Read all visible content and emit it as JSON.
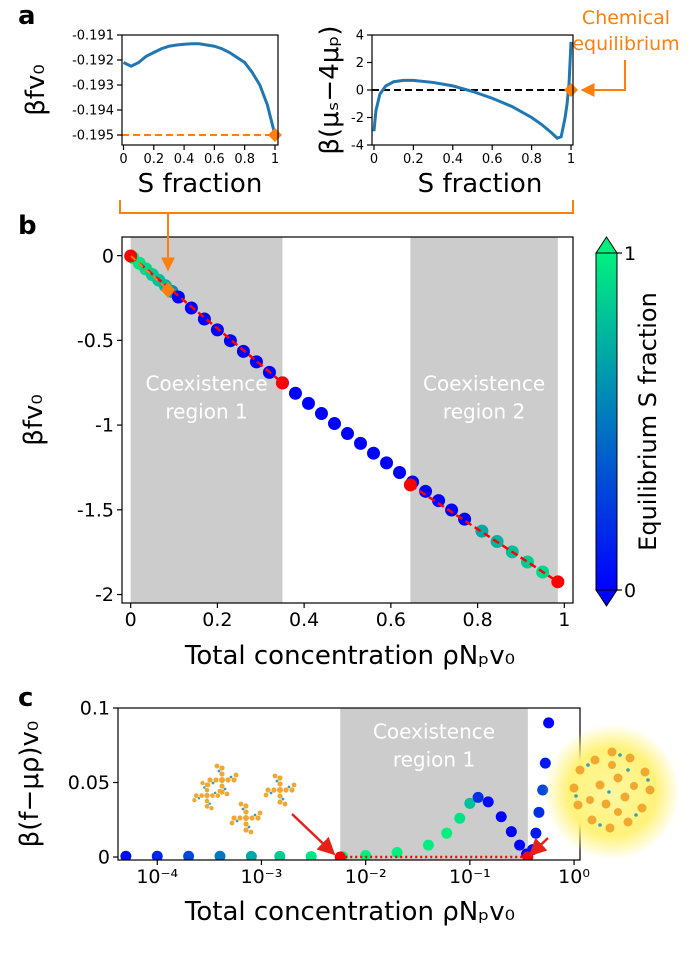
{
  "panel_labels": [
    "a",
    "b",
    "c"
  ],
  "chart_data": [
    {
      "type": "line",
      "xlabel": "S fraction",
      "ylabel": "βfv₀",
      "xlim": [
        -0.01,
        1.02
      ],
      "ylim": [
        -0.1954,
        -0.191
      ],
      "xticks": [
        0,
        0.2,
        0.4,
        0.6,
        0.8,
        1
      ],
      "yticks": [
        -0.191,
        -0.192,
        -0.193,
        -0.194,
        -0.195
      ],
      "hlines": [
        {
          "y": -0.195,
          "color": "#ff7f0e",
          "style": "dashed"
        }
      ],
      "series": [
        {
          "kind": "line",
          "color": "#1f77b4",
          "x": [
            0,
            0.05,
            0.1,
            0.15,
            0.2,
            0.25,
            0.3,
            0.35,
            0.4,
            0.45,
            0.5,
            0.55,
            0.6,
            0.65,
            0.7,
            0.75,
            0.8,
            0.85,
            0.9,
            0.95,
            1
          ],
          "values": [
            -0.1921,
            -0.19225,
            -0.1921,
            -0.19185,
            -0.1917,
            -0.19155,
            -0.19145,
            -0.1914,
            -0.19137,
            -0.19135,
            -0.19135,
            -0.1914,
            -0.19145,
            -0.19155,
            -0.1917,
            -0.1919,
            -0.1921,
            -0.1925,
            -0.193,
            -0.1938,
            -0.195
          ]
        },
        {
          "kind": "scatter",
          "marker": "diamond",
          "color": "#ff7f0e",
          "x": [
            1
          ],
          "values": [
            -0.195
          ]
        }
      ]
    },
    {
      "type": "line",
      "xlabel": "S fraction",
      "ylabel": "β(μₛ−4μₚ)",
      "annotation": [
        "Chemical",
        "equilibrium"
      ],
      "annotation_color": "#ff7f0e",
      "xlim": [
        -0.01,
        1.01
      ],
      "ylim": [
        -4,
        4
      ],
      "xticks": [
        0,
        0.2,
        0.4,
        0.6,
        0.8,
        1
      ],
      "yticks": [
        4,
        2,
        0,
        -2,
        -4
      ],
      "hlines": [
        {
          "y": 0,
          "color": "#000000",
          "style": "dashed"
        }
      ],
      "series": [
        {
          "kind": "line",
          "color": "#1f77b4",
          "x": [
            0,
            0.01,
            0.03,
            0.06,
            0.1,
            0.15,
            0.2,
            0.3,
            0.4,
            0.5,
            0.6,
            0.7,
            0.8,
            0.85,
            0.9,
            0.93,
            0.95,
            0.97,
            0.98,
            0.99,
            1
          ],
          "values": [
            -3,
            -1.5,
            -0.3,
            0.3,
            0.6,
            0.7,
            0.7,
            0.55,
            0.3,
            -0.1,
            -0.6,
            -1.2,
            -2,
            -2.5,
            -3.1,
            -3.5,
            -3.4,
            -2,
            -1,
            0.5,
            3.5
          ]
        },
        {
          "kind": "scatter",
          "marker": "diamond",
          "color": "#ff7f0e",
          "x": [
            1
          ],
          "values": [
            0
          ]
        }
      ]
    },
    {
      "type": "scatter",
      "xlabel": "Total concentration ρNₚv₀",
      "ylabel": "βfv₀",
      "xlim": [
        -0.02,
        1.02
      ],
      "ylim": [
        -2.05,
        0.11
      ],
      "xticks": [
        0,
        0.2,
        0.4,
        0.6,
        0.8,
        1
      ],
      "yticks": [
        0,
        -0.5,
        -1,
        -1.5,
        -2
      ],
      "spans": [
        {
          "x": [
            0,
            0.35
          ],
          "color": "#cccccc",
          "label": [
            "Coexistence",
            "region 1"
          ]
        },
        {
          "x": [
            0.645,
            0.985
          ],
          "color": "#cccccc",
          "label": [
            "Coexistence",
            "region 2"
          ]
        }
      ],
      "cmap": [
        "#0000ff",
        "#00f080"
      ],
      "clim": [
        0,
        1
      ],
      "cticks": [
        0,
        1
      ],
      "clabel": "Equilibrium S fraction",
      "series": [
        {
          "kind": "scatter",
          "x": [
            0.005,
            0.02,
            0.035,
            0.05,
            0.065,
            0.08,
            0.095,
            0.11,
            0.14,
            0.17,
            0.2,
            0.23,
            0.26,
            0.29,
            0.32,
            0.35,
            0.38,
            0.41,
            0.44,
            0.47,
            0.5,
            0.53,
            0.56,
            0.59,
            0.62,
            0.65,
            0.68,
            0.71,
            0.74,
            0.77,
            0.81,
            0.845,
            0.88,
            0.915,
            0.95
          ],
          "values": [
            -0.011,
            -0.045,
            -0.078,
            -0.112,
            -0.145,
            -0.178,
            -0.211,
            -0.244,
            -0.309,
            -0.374,
            -0.438,
            -0.502,
            -0.565,
            -0.627,
            -0.689,
            -0.751,
            -0.812,
            -0.872,
            -0.932,
            -0.991,
            -1.05,
            -1.108,
            -1.166,
            -1.223,
            -1.28,
            -1.336,
            -1.391,
            -1.446,
            -1.501,
            -1.555,
            -1.626,
            -1.687,
            -1.748,
            -1.808,
            -1.867
          ],
          "c": [
            1,
            0.95,
            0.9,
            0.85,
            0.8,
            0.75,
            0.6,
            0,
            0,
            0,
            0,
            0,
            0,
            0,
            0,
            0,
            0,
            0,
            0,
            0,
            0,
            0,
            0,
            0,
            0,
            0,
            0,
            0,
            0,
            0,
            0.7,
            0.75,
            0.8,
            0.85,
            0.9
          ]
        },
        {
          "kind": "line",
          "color": "#ff0000",
          "style": "dashed",
          "x": [
            0,
            0.35
          ],
          "values": [
            -0.002,
            -0.751
          ]
        },
        {
          "kind": "line",
          "color": "#ff0000",
          "style": "dashed",
          "x": [
            0.645,
            0.985
          ],
          "values": [
            -1.353,
            -1.925
          ]
        },
        {
          "kind": "scatter",
          "color": "#ff0000",
          "x": [
            0,
            0.35,
            0.645,
            0.985
          ],
          "values": [
            -0.002,
            -0.751,
            -1.353,
            -1.925
          ]
        }
      ]
    },
    {
      "type": "scatter",
      "xlabel": "Total concentration ρNₚv₀",
      "ylabel": "β(f−μρ)v₀",
      "xlog": true,
      "xlim": [
        4.2e-05,
        1.14
      ],
      "ylim": [
        -0.002,
        0.1
      ],
      "xticks": [
        {
          "value": 0.0001,
          "label": "10⁻⁴"
        },
        {
          "value": 0.001,
          "label": "10⁻³"
        },
        {
          "value": 0.01,
          "label": "10⁻²"
        },
        {
          "value": 0.1,
          "label": "10⁻¹"
        },
        {
          "value": 1,
          "label": "10⁰"
        }
      ],
      "yticks": [
        0,
        0.05,
        0.1
      ],
      "spans": [
        {
          "x": [
            0.0057,
            0.36
          ],
          "color": "#cccccc",
          "label": [
            "Coexistence",
            "region 1"
          ]
        }
      ],
      "cmap": [
        "#0000ff",
        "#00f080"
      ],
      "clim": [
        0,
        1
      ],
      "series": [
        {
          "kind": "scatter",
          "x": [
            5e-05,
            0.0001,
            0.0002,
            0.0004,
            0.0008,
            0.0015,
            0.003,
            0.006,
            0.01,
            0.02,
            0.04,
            0.06,
            0.08,
            0.1,
            0.12,
            0.15,
            0.2,
            0.25,
            0.3,
            0.35,
            0.4,
            0.43,
            0.46,
            0.5,
            0.53,
            0.57
          ],
          "values": [
            0.0005,
            0.0005,
            0.0005,
            0.0005,
            0.0004,
            0.0004,
            0.0003,
            0.0003,
            0.001,
            0.003,
            0.008,
            0.016,
            0.026,
            0.036,
            0.04,
            0.037,
            0.027,
            0.017,
            0.008,
            0.002,
            0.005,
            0.016,
            0.03,
            0.045,
            0.063,
            0.09
          ],
          "c": [
            0.05,
            0.15,
            0.3,
            0.5,
            0.7,
            0.85,
            0.95,
            1,
            1,
            1,
            1,
            1,
            0.95,
            0.8,
            0.2,
            0.05,
            0,
            0,
            0,
            0,
            0.05,
            0.1,
            0.2,
            0.3,
            0.1,
            0
          ]
        },
        {
          "kind": "line",
          "color": "#ff0000",
          "style": "dotted",
          "x": [
            0.0057,
            0.36
          ],
          "values": [
            0,
            0
          ]
        },
        {
          "kind": "scatter",
          "color": "#ff0000",
          "x": [
            0.0057,
            0.36
          ],
          "values": [
            0,
            0
          ]
        }
      ]
    }
  ]
}
